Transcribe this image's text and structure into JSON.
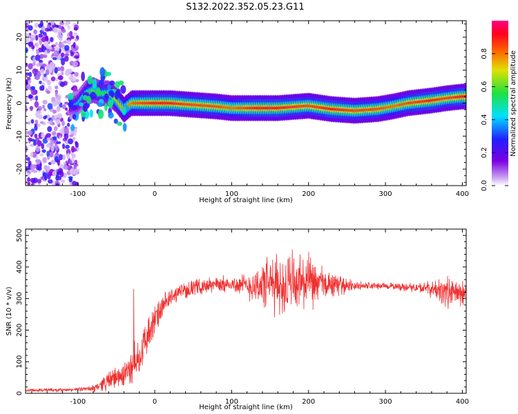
{
  "title": "S132.2022.352.05.23.G11",
  "colors": {
    "snr_line": "#f03030",
    "spectrogram_weak": "#a070e8",
    "spectrogram_strong": "#ff2020",
    "background": "#ffffff"
  },
  "colorbar": {
    "label": "Normalized spectral amplitude",
    "ticks": [
      "0.0",
      "0.2",
      "0.4",
      "0.6",
      "0.8"
    ],
    "tick_values": [
      0.0,
      0.2,
      0.4,
      0.6,
      0.8
    ],
    "range": [
      0.0,
      1.0
    ],
    "colormap": "rainbow (white-purple-blue-cyan-green-yellow-red-magenta)"
  },
  "chart_data": [
    {
      "type": "heatmap",
      "title": "S132.2022.352.05.23.G11",
      "xlabel": "Height of straight line (km)",
      "ylabel": "Frequency (Hz)",
      "xlim": [
        -168,
        405
      ],
      "ylim": [
        -25,
        25
      ],
      "x_ticks": [
        -100,
        0,
        100,
        200,
        300,
        400
      ],
      "x_tick_labels": [
        "-100",
        "0",
        "100",
        "200",
        "300",
        "400"
      ],
      "y_ticks": [
        -20,
        -10,
        0,
        10,
        20
      ],
      "y_tick_labels": [
        "-20",
        "-10",
        "0",
        "10",
        "20"
      ],
      "grid": false,
      "ridge": {
        "description": "peak frequency of spectral ridge vs height",
        "x": [
          -110,
          -100,
          -90,
          -80,
          -70,
          -60,
          -50,
          -40,
          -30,
          -20,
          0,
          20,
          50,
          80,
          100,
          130,
          160,
          200,
          230,
          260,
          290,
          310,
          330,
          360,
          380,
          400
        ],
        "freq": [
          -1,
          0,
          3,
          4,
          3,
          3,
          1,
          -2,
          0,
          0,
          0,
          0,
          -0.5,
          -1,
          -1.5,
          -1.5,
          -1.5,
          -0.8,
          -1.8,
          -2.3,
          -1.8,
          -1,
          0,
          0.8,
          1.5,
          2
        ],
        "amplitude": [
          0.3,
          0.4,
          0.5,
          0.6,
          0.55,
          0.6,
          0.7,
          0.8,
          0.8,
          0.85,
          0.9,
          0.9,
          0.85,
          0.85,
          0.8,
          0.9,
          0.9,
          0.85,
          0.9,
          0.85,
          0.85,
          0.8,
          0.85,
          0.9,
          0.85,
          0.9
        ]
      },
      "noise_region_x": [
        -168,
        -100
      ]
    },
    {
      "type": "line",
      "xlabel": "Height of straight line (km)",
      "ylabel": "SNR (10 * v/v)",
      "xlim": [
        -168,
        405
      ],
      "ylim": [
        0,
        520
      ],
      "x_ticks": [
        -100,
        0,
        100,
        200,
        300,
        400
      ],
      "x_tick_labels": [
        "-100",
        "0",
        "100",
        "200",
        "300",
        "400"
      ],
      "y_ticks": [
        0,
        100,
        200,
        300,
        400,
        500
      ],
      "y_tick_labels": [
        "0",
        "100",
        "200",
        "300",
        "400",
        "500"
      ],
      "grid": false,
      "series": [
        {
          "envelope": {
            "x": [
              -168,
              -120,
              -100,
              -80,
              -60,
              -40,
              -30,
              -20,
              -10,
              0,
              10,
              20,
              30,
              50,
              80,
              100,
              120,
              150,
              170,
              190,
              210,
              230,
              260,
              300,
              340,
              360,
              380,
              400,
              405
            ],
            "mean": [
              10,
              10,
              12,
              15,
              40,
              60,
              80,
              120,
              180,
              230,
              270,
              300,
              320,
              335,
              345,
              345,
              340,
              345,
              340,
              350,
              345,
              345,
              340,
              340,
              335,
              330,
              320,
              315,
              320
            ],
            "spread": [
              6,
              6,
              6,
              10,
              30,
              40,
              60,
              60,
              60,
              50,
              40,
              30,
              25,
              25,
              25,
              25,
              40,
              90,
              100,
              100,
              70,
              40,
              15,
              10,
              15,
              25,
              50,
              40,
              30
            ]
          }
        }
      ]
    }
  ],
  "panels": {
    "top": {
      "xlabel": "Height of straight line (km)",
      "ylabel": "Frequency (Hz)"
    },
    "bottom": {
      "xlabel": "Height of straight line (km)",
      "ylabel": "SNR (10 * v/v)"
    }
  }
}
